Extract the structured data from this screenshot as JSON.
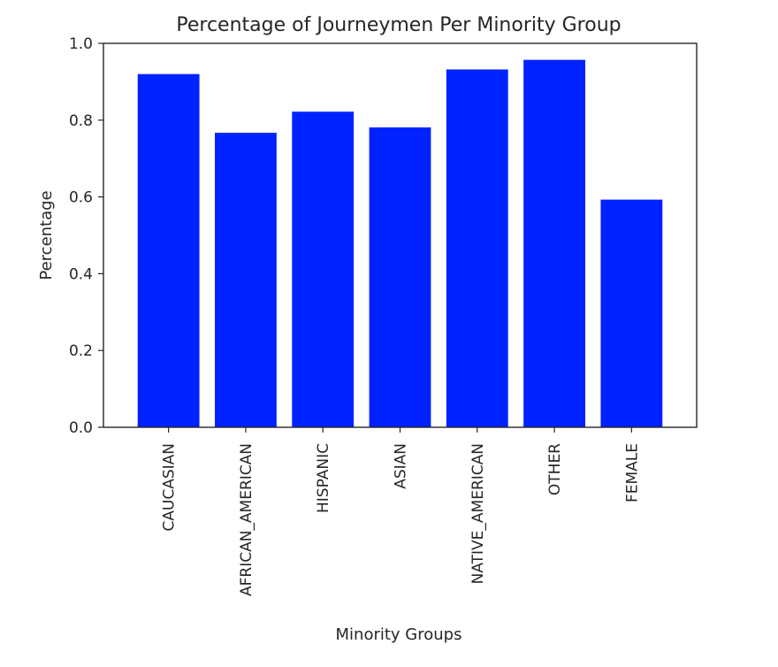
{
  "chart_data": {
    "type": "bar",
    "title": "Percentage of Journeymen Per Minority Group",
    "xlabel": "Minority Groups",
    "ylabel": "Percentage",
    "categories": [
      "CAUCASIAN",
      "AFRICAN_AMERICAN",
      "HISPANIC",
      "ASIAN",
      "NATIVE_AMERICAN",
      "OTHER",
      "FEMALE"
    ],
    "values": [
      0.92,
      0.767,
      0.822,
      0.781,
      0.932,
      0.957,
      0.593
    ],
    "ylim": [
      0.0,
      1.0
    ],
    "yticks": [
      0.0,
      0.2,
      0.4,
      0.6,
      0.8,
      1.0
    ],
    "ytick_labels": [
      "0.0",
      "0.2",
      "0.4",
      "0.6",
      "0.8",
      "1.0"
    ],
    "bar_color": "#0022ff",
    "grid": false,
    "legend": "none"
  }
}
